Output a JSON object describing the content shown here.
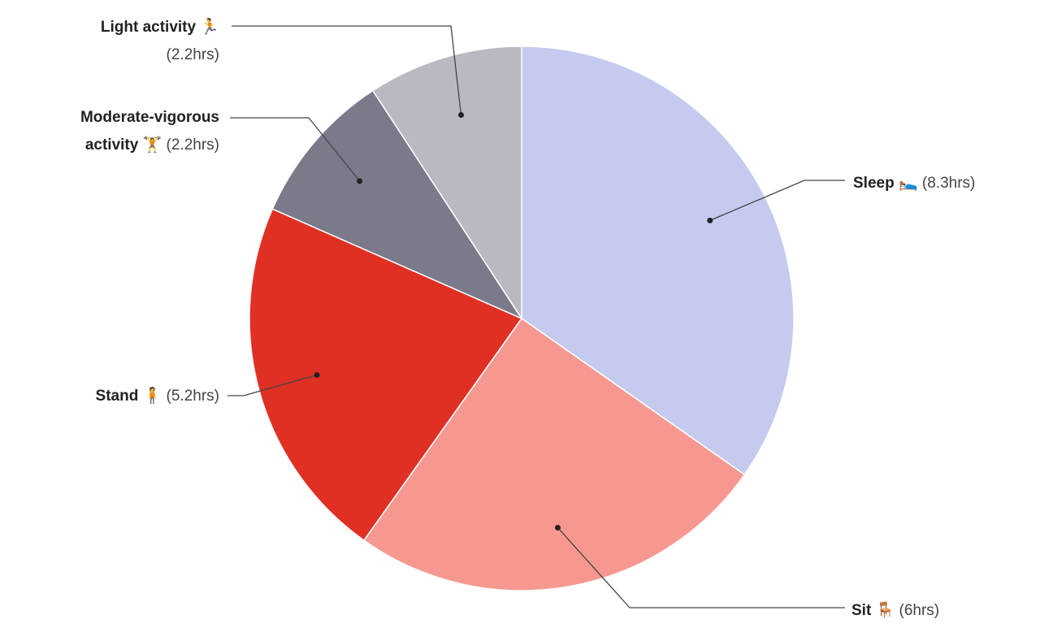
{
  "chart_data": {
    "type": "pie",
    "categories": [
      "Sleep 🛌",
      "Sit 🪑",
      "Stand 🧍",
      "Moderate-vigorous activity 🏋",
      "Light activity 🏃"
    ],
    "values": [
      8.3,
      6,
      5.2,
      2.2,
      2.2
    ],
    "value_labels": [
      "(8.3hrs)",
      "(6hrs)",
      "(5.2hrs)",
      "(2.2hrs)",
      "(2.2hrs)"
    ],
    "colors": [
      "#c5cbef",
      "#f79890",
      "#e03024",
      "#7b7a8a",
      "#b9b9c1"
    ]
  }
}
